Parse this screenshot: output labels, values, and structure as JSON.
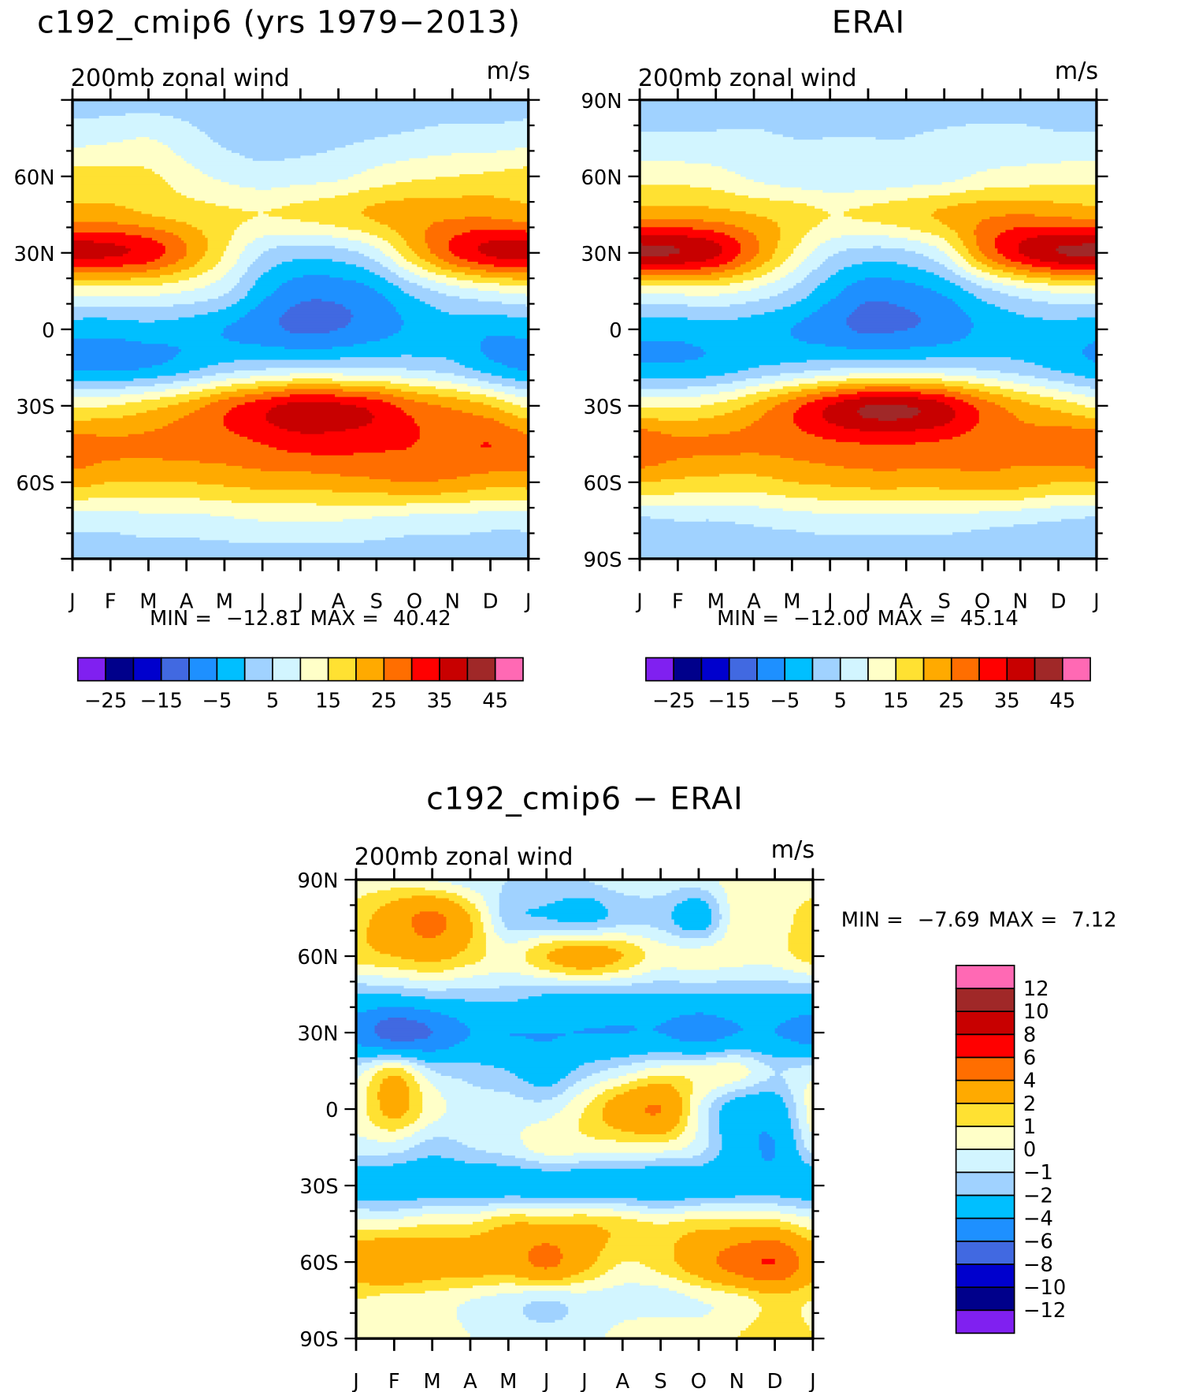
{
  "chart_data": [
    {
      "type": "heatmap",
      "title": "c192_cmip6 (yrs 1979−2013)",
      "subtitle": "200mb zonal wind",
      "units": "m/s",
      "months": [
        "J",
        "F",
        "M",
        "A",
        "M",
        "J",
        "J",
        "A",
        "S",
        "O",
        "N",
        "D",
        "J"
      ],
      "lat_labels": [
        "",
        "60N",
        "30N",
        "0",
        "30S",
        "60S",
        ""
      ],
      "lats": [
        90,
        75,
        60,
        45,
        30,
        15,
        0,
        -15,
        -30,
        -45,
        -60,
        -75,
        -90
      ],
      "grid": [
        [
          3,
          3,
          3,
          3,
          2,
          2,
          2,
          2,
          2,
          3,
          3,
          3,
          3
        ],
        [
          8,
          9,
          10,
          7,
          4,
          3,
          3,
          4,
          5,
          6,
          7,
          7,
          8
        ],
        [
          17,
          17,
          16,
          12,
          9,
          7,
          8,
          9,
          12,
          14,
          15,
          16,
          17
        ],
        [
          22,
          22,
          20,
          18,
          16,
          15,
          16,
          18,
          21,
          23,
          24,
          24,
          22
        ],
        [
          37,
          36,
          33,
          25,
          15,
          5,
          2,
          3,
          8,
          20,
          30,
          36,
          37
        ],
        [
          12,
          12,
          12,
          10,
          6,
          -3,
          -8,
          -8,
          -5,
          2,
          7,
          10,
          12
        ],
        [
          -3,
          -3,
          -2,
          -3,
          -5,
          -8,
          -11,
          -10,
          -7,
          -4,
          -2,
          -4,
          -3
        ],
        [
          -6,
          -6,
          -5,
          -2,
          2,
          4,
          5,
          5,
          5,
          4,
          2,
          -3,
          -6
        ],
        [
          14,
          15,
          18,
          22,
          28,
          33,
          37,
          36,
          33,
          27,
          24,
          20,
          14
        ],
        [
          27,
          26,
          26,
          27,
          28,
          30,
          32,
          32,
          31,
          30,
          29,
          30,
          27
        ],
        [
          22,
          20,
          20,
          20,
          21,
          22,
          22,
          23,
          24,
          25,
          24,
          22,
          22
        ],
        [
          7,
          7,
          8,
          8,
          9,
          10,
          10,
          10,
          9,
          8,
          8,
          7,
          7
        ],
        [
          3,
          3,
          3,
          3,
          3,
          3,
          3,
          3,
          3,
          3,
          3,
          3,
          3
        ]
      ],
      "stats": {
        "min_label": "MIN =",
        "min": "−12.81",
        "max_label": "MAX =",
        "max": "40.42"
      },
      "colorbar": {
        "levels": [
          -25,
          -20,
          -15,
          -10,
          -5,
          0,
          5,
          10,
          15,
          20,
          25,
          30,
          35,
          40,
          45
        ],
        "labels": [
          "−25",
          "−15",
          "−5",
          "5",
          "15",
          "25",
          "35",
          "45"
        ],
        "colors": [
          "#8020f0",
          "#00008b",
          "#0000cd",
          "#4169e1",
          "#1e90ff",
          "#00bfff",
          "#a0d2ff",
          "#d2f5ff",
          "#ffffc8",
          "#ffe132",
          "#ffaa00",
          "#ff6e00",
          "#ff0000",
          "#c80000",
          "#a02828",
          "#ff69b4"
        ]
      }
    },
    {
      "type": "heatmap",
      "title": "ERAI",
      "subtitle": "200mb zonal wind",
      "units": "m/s",
      "months": [
        "J",
        "F",
        "M",
        "A",
        "M",
        "J",
        "J",
        "A",
        "S",
        "O",
        "N",
        "D",
        "J"
      ],
      "lat_labels": [
        "90N",
        "60N",
        "30N",
        "0",
        "30S",
        "60S",
        "90S"
      ],
      "lats": [
        90,
        75,
        60,
        45,
        30,
        15,
        0,
        -15,
        -30,
        -45,
        -60,
        -75,
        -90
      ],
      "grid": [
        [
          2,
          2,
          2,
          2,
          1,
          1,
          2,
          2,
          2,
          2,
          2,
          2,
          2
        ],
        [
          6,
          6,
          6,
          6,
          5,
          5,
          5,
          5,
          6,
          7,
          7,
          6,
          6
        ],
        [
          13,
          13,
          12,
          9,
          7,
          6,
          6,
          7,
          8,
          11,
          12,
          13,
          13
        ],
        [
          23,
          23,
          22,
          20,
          18,
          15,
          16,
          18,
          21,
          24,
          25,
          24,
          23
        ],
        [
          41,
          40,
          36,
          26,
          15,
          6,
          3,
          4,
          10,
          25,
          35,
          40,
          41
        ],
        [
          12,
          12,
          12,
          9,
          4,
          -3,
          -8,
          -7,
          -4,
          3,
          8,
          11,
          12
        ],
        [
          -3,
          -3,
          -2,
          -3,
          -5,
          -8,
          -11,
          -10,
          -8,
          -4,
          -2,
          -2,
          -3
        ],
        [
          -4,
          -4,
          -3,
          0,
          2,
          4,
          5,
          5,
          5,
          4,
          2,
          -1,
          -4
        ],
        [
          14,
          14,
          16,
          21,
          28,
          35,
          40,
          40,
          36,
          28,
          22,
          18,
          14
        ],
        [
          29,
          26,
          26,
          26,
          27,
          29,
          30,
          30,
          29,
          27,
          26,
          28,
          29
        ],
        [
          20,
          19,
          18,
          18,
          20,
          21,
          22,
          22,
          22,
          23,
          22,
          20,
          20
        ],
        [
          4,
          5,
          5,
          6,
          7,
          8,
          8,
          8,
          8,
          7,
          6,
          5,
          4
        ],
        [
          2,
          2,
          2,
          2,
          2,
          2,
          2,
          2,
          2,
          2,
          2,
          2,
          2
        ]
      ],
      "stats": {
        "min_label": "MIN =",
        "min": "−12.00",
        "max_label": "MAX =",
        "max": "45.14"
      },
      "colorbar": {
        "levels": [
          -25,
          -20,
          -15,
          -10,
          -5,
          0,
          5,
          10,
          15,
          20,
          25,
          30,
          35,
          40,
          45
        ],
        "labels": [
          "−25",
          "−15",
          "−5",
          "5",
          "15",
          "25",
          "35",
          "45"
        ],
        "colors": [
          "#8020f0",
          "#00008b",
          "#0000cd",
          "#4169e1",
          "#1e90ff",
          "#00bfff",
          "#a0d2ff",
          "#d2f5ff",
          "#ffffc8",
          "#ffe132",
          "#ffaa00",
          "#ff6e00",
          "#ff0000",
          "#c80000",
          "#a02828",
          "#ff69b4"
        ]
      }
    },
    {
      "type": "heatmap",
      "title": "c192_cmip6 − ERAI",
      "subtitle": "200mb zonal wind",
      "units": "m/s",
      "months": [
        "J",
        "F",
        "M",
        "A",
        "M",
        "J",
        "J",
        "A",
        "S",
        "O",
        "N",
        "D",
        "J"
      ],
      "lat_labels": [
        "90N",
        "60N",
        "30N",
        "0",
        "30S",
        "60S",
        "90S"
      ],
      "lats": [
        90,
        75,
        60,
        45,
        30,
        15,
        0,
        -15,
        -30,
        -45,
        -60,
        -75,
        -90
      ],
      "grid": [
        [
          0.5,
          0.5,
          0,
          -0.5,
          -1,
          -1,
          -1,
          -0.5,
          -0.5,
          -0.5,
          0.5,
          0.5,
          0.5
        ],
        [
          1.5,
          3,
          4.5,
          2,
          -1.5,
          -2,
          -2.5,
          -1.5,
          -1.5,
          -3,
          0.5,
          0.5,
          1.5
        ],
        [
          1.5,
          2,
          2.5,
          1.5,
          0.5,
          2,
          3,
          2,
          0.5,
          0.5,
          0.5,
          0.5,
          1.5
        ],
        [
          -2,
          -2,
          -1.5,
          -1.5,
          -1.5,
          -2,
          -2,
          -2,
          -2,
          -2,
          -2,
          -2,
          -2
        ],
        [
          -5,
          -7,
          -6,
          -4,
          -4,
          -4,
          -4,
          -4,
          -4,
          -5,
          -4,
          -4,
          -5
        ],
        [
          -0.5,
          1.5,
          -1,
          -1.5,
          -2,
          -3,
          -1.5,
          -0.5,
          0.5,
          0.5,
          0.5,
          -1,
          -0.5
        ],
        [
          0.5,
          2.5,
          0.5,
          -0.5,
          -0.5,
          -0.5,
          1,
          3,
          4,
          0,
          -3,
          -3,
          0.5
        ],
        [
          -0.5,
          -0.5,
          -1.5,
          -1,
          -0.5,
          0.5,
          0.5,
          0.5,
          0.5,
          -0.5,
          -3,
          -4,
          -0.5
        ],
        [
          -3,
          -3,
          -3,
          -3,
          -3,
          -3,
          -3,
          -3,
          -3.5,
          -3,
          -3,
          -3,
          -3
        ],
        [
          0.5,
          0.5,
          1,
          1,
          2,
          2,
          2,
          1.5,
          1,
          1.5,
          1.5,
          1.5,
          0.5
        ],
        [
          3,
          4,
          3,
          3,
          3,
          4.5,
          2.5,
          1,
          1.5,
          3,
          5,
          6,
          3
        ],
        [
          1,
          0.5,
          0.5,
          0,
          -0.5,
          -1,
          -0.5,
          -0.5,
          -0.5,
          0,
          0.5,
          1.5,
          1
        ],
        [
          1,
          0.5,
          0.5,
          0,
          -0.5,
          -0.5,
          -0.5,
          0.5,
          1,
          0.5,
          1,
          2,
          1
        ]
      ],
      "stats": {
        "min_label": "MIN =",
        "min": "−7.69",
        "max_label": "MAX =",
        "max": "7.12"
      },
      "colorbar": {
        "levels": [
          -12,
          -10,
          -8,
          -6,
          -4,
          -2,
          -1,
          0,
          1,
          2,
          4,
          6,
          8,
          10,
          12
        ],
        "labels": [
          "−12",
          "−10",
          "−8",
          "−6",
          "−4",
          "−2",
          "−1",
          "0",
          "1",
          "2",
          "4",
          "6",
          "8",
          "10",
          "12"
        ],
        "colors": [
          "#8020f0",
          "#00008b",
          "#0000cd",
          "#4169e1",
          "#1e90ff",
          "#00bfff",
          "#a0d2ff",
          "#d2f5ff",
          "#ffffc8",
          "#ffe132",
          "#ffaa00",
          "#ff6e00",
          "#ff0000",
          "#c80000",
          "#a02828",
          "#ff69b4"
        ]
      }
    }
  ]
}
